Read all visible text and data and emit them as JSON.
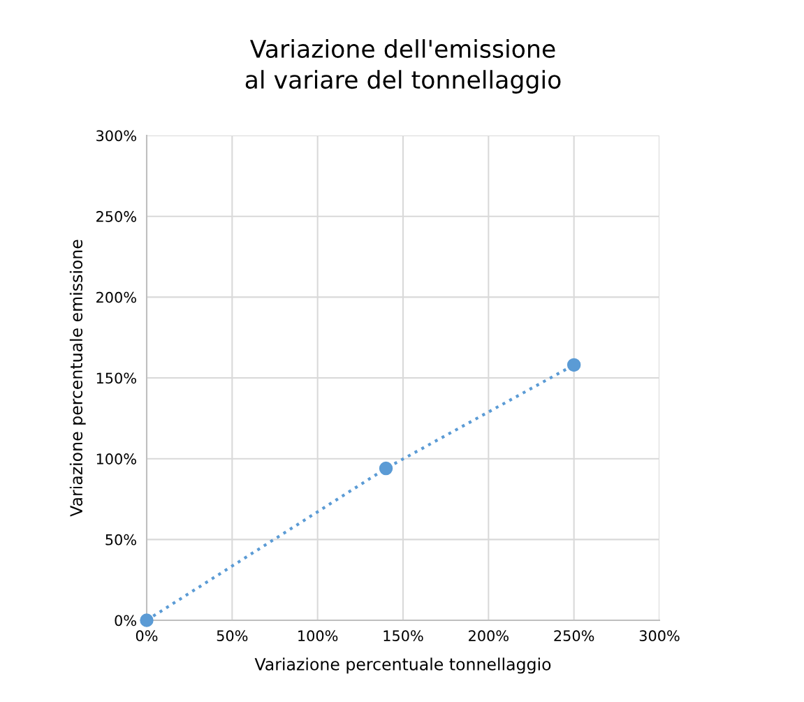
{
  "chart_data": {
    "type": "line",
    "title": "Variazione dell'emissione\nal variare del tonnellaggio",
    "xlabel": "Variazione percentuale tonnellaggio",
    "ylabel": "Variazione percentuale emissione",
    "x": [
      0,
      140,
      250
    ],
    "series": [
      {
        "color": "#5b9bd5",
        "values": [
          0,
          94,
          158
        ]
      }
    ],
    "marker": "circle",
    "line_style": "dotted",
    "grid": true,
    "legend": false,
    "xlim": [
      0,
      300
    ],
    "ylim": [
      0,
      300
    ],
    "xticks": [
      {
        "value": 0,
        "label": "0%"
      },
      {
        "value": 50,
        "label": "50%"
      },
      {
        "value": 100,
        "label": "100%"
      },
      {
        "value": 150,
        "label": "150%"
      },
      {
        "value": 200,
        "label": "200%"
      },
      {
        "value": 250,
        "label": "250%"
      },
      {
        "value": 300,
        "label": "300%"
      }
    ],
    "yticks": [
      {
        "value": 0,
        "label": "0%"
      },
      {
        "value": 50,
        "label": "50%"
      },
      {
        "value": 100,
        "label": "100%"
      },
      {
        "value": 150,
        "label": "150%"
      },
      {
        "value": 200,
        "label": "200%"
      },
      {
        "value": 250,
        "label": "250%"
      },
      {
        "value": 300,
        "label": "300%"
      }
    ]
  }
}
